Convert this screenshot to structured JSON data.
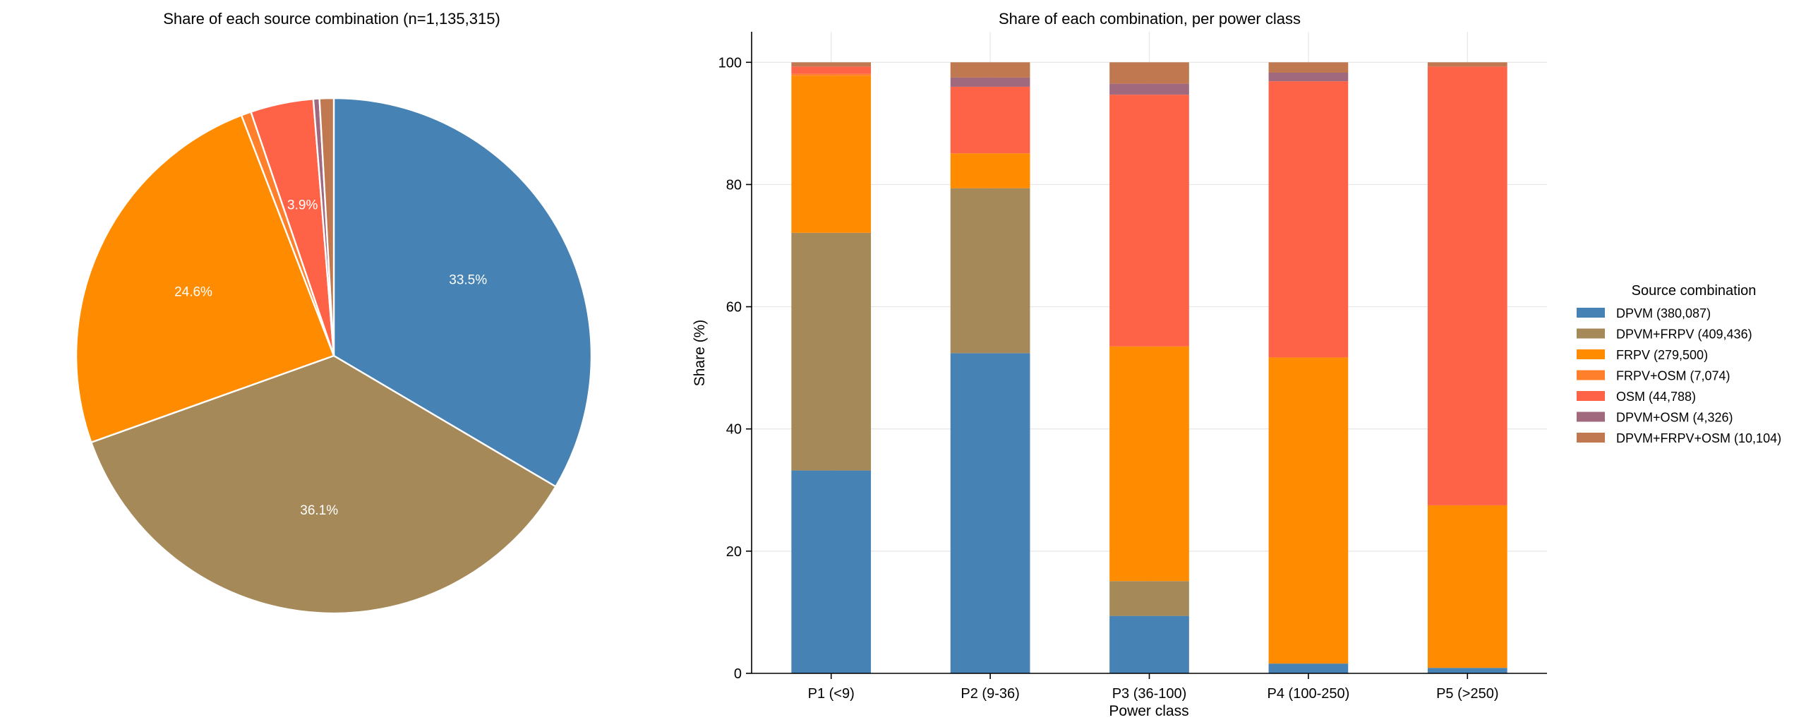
{
  "chart_data": [
    {
      "type": "pie",
      "title": "Share of each source combination (n=1,135,315)",
      "start_angle": 90,
      "direction": "clockwise",
      "label_threshold_percent": 3,
      "slices": [
        {
          "label": "DPVM",
          "value": 380087,
          "percent": 33.5,
          "percent_label": "33.5%",
          "color": "#4682b4"
        },
        {
          "label": "DPVM+FRPV",
          "value": 409436,
          "percent": 36.1,
          "percent_label": "36.1%",
          "color": "#a58959"
        },
        {
          "label": "FRPV",
          "value": 279500,
          "percent": 24.6,
          "percent_label": "24.6%",
          "color": "#ff8c00"
        },
        {
          "label": "FRPV+OSM",
          "value": 7074,
          "percent": 0.6,
          "percent_label": "",
          "color": "#ff7f2a"
        },
        {
          "label": "OSM",
          "value": 44788,
          "percent": 3.9,
          "percent_label": "3.9%",
          "color": "#ff6347"
        },
        {
          "label": "DPVM+OSM",
          "value": 4326,
          "percent": 0.4,
          "percent_label": "",
          "color": "#a0697e"
        },
        {
          "label": "DPVM+FRPV+OSM",
          "value": 10104,
          "percent": 0.9,
          "percent_label": "",
          "color": "#c07850"
        }
      ]
    },
    {
      "type": "bar",
      "stacked": true,
      "title": "Share of each combination, per power class",
      "xlabel": "Power class",
      "ylabel": "Share (%)",
      "ylim": [
        0,
        105
      ],
      "yticks": [
        0,
        20,
        40,
        60,
        80,
        100
      ],
      "grid": "y",
      "categories": [
        "P1 (<9)",
        "P2 (9-36)",
        "P3 (36-100)",
        "P4 (100-250)",
        "P5 (>250)"
      ],
      "series": [
        {
          "name": "DPVM (380,087)",
          "color": "#4682b4",
          "values": [
            33.2,
            52.4,
            9.4,
            1.6,
            0.9
          ]
        },
        {
          "name": "DPVM+FRPV (409,436)",
          "color": "#a58959",
          "values": [
            38.9,
            27.0,
            5.7,
            0.0,
            0.0
          ]
        },
        {
          "name": "FRPV (279,500)",
          "color": "#ff8c00",
          "values": [
            25.7,
            5.7,
            38.4,
            50.1,
            26.6
          ]
        },
        {
          "name": "FRPV+OSM (7,074)",
          "color": "#ff7f2a",
          "values": [
            0.3,
            0.0,
            0.0,
            0.0,
            0.0
          ]
        },
        {
          "name": "OSM (44,788)",
          "color": "#ff6347",
          "values": [
            1.2,
            10.9,
            41.2,
            45.2,
            71.8
          ]
        },
        {
          "name": "DPVM+OSM (4,326)",
          "color": "#a0697e",
          "values": [
            0.0,
            1.5,
            1.8,
            1.4,
            0.0
          ]
        },
        {
          "name": "DPVM+FRPV+OSM (10,104)",
          "color": "#c07850",
          "values": [
            0.7,
            2.5,
            3.5,
            1.7,
            0.7
          ]
        }
      ],
      "legend": {
        "title": "Source combination",
        "placement": "right"
      }
    }
  ]
}
